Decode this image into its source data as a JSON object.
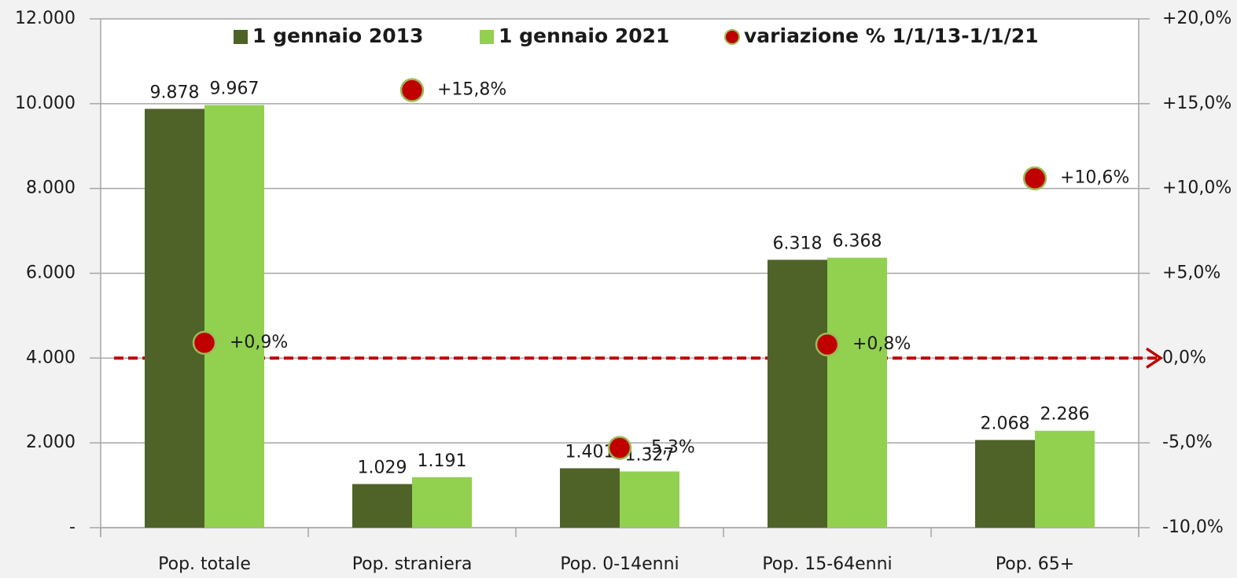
{
  "chart_data": {
    "type": "bar",
    "categories": [
      "Pop. totale",
      "Pop. straniera",
      "Pop. 0-14enni",
      "Pop. 15-64enni",
      "Pop. 65+"
    ],
    "series": [
      {
        "name": "1 gennaio 2013",
        "color": "#4f6228",
        "type": "bar",
        "values": [
          9878,
          1029,
          1401,
          6318,
          2068
        ],
        "value_labels": [
          "9.878",
          "1.029",
          "1.401",
          "6.318",
          "2.068"
        ]
      },
      {
        "name": "1 gennaio 2021",
        "color": "#92d050",
        "type": "bar",
        "values": [
          9967,
          1191,
          1327,
          6368,
          2286
        ],
        "value_labels": [
          "9.967",
          "1.191",
          "1.327",
          "6.368",
          "2.286"
        ]
      },
      {
        "name": "variazione % 1/1/13-1/1/21",
        "color": "#c00000",
        "type": "scatter",
        "axis": "y2",
        "values": [
          0.9,
          15.8,
          -5.3,
          0.8,
          10.6
        ],
        "value_labels": [
          "+0,9%",
          "+15,8%",
          "-5,3%",
          "+0,8%",
          "+10,6%"
        ]
      }
    ],
    "ylim": [
      0,
      12000
    ],
    "yticks": [
      {
        "value": 0,
        "label": "-"
      },
      {
        "value": 2000,
        "label": "2.000"
      },
      {
        "value": 4000,
        "label": "4.000"
      },
      {
        "value": 6000,
        "label": "6.000"
      },
      {
        "value": 8000,
        "label": "8.000"
      },
      {
        "value": 10000,
        "label": "10.000"
      },
      {
        "value": 12000,
        "label": "12.000"
      }
    ],
    "y2lim": [
      -10,
      20
    ],
    "y2ticks": [
      {
        "value": -10,
        "label": "-10,0%"
      },
      {
        "value": -5,
        "label": "-5,0%"
      },
      {
        "value": 0,
        "label": "0,0%"
      },
      {
        "value": 5,
        "label": "+5,0%"
      },
      {
        "value": 10,
        "label": "+10,0%"
      },
      {
        "value": 15,
        "label": "+15,0%"
      },
      {
        "value": 20,
        "label": "+20,0%"
      }
    ],
    "grid": true,
    "legend": "top"
  }
}
